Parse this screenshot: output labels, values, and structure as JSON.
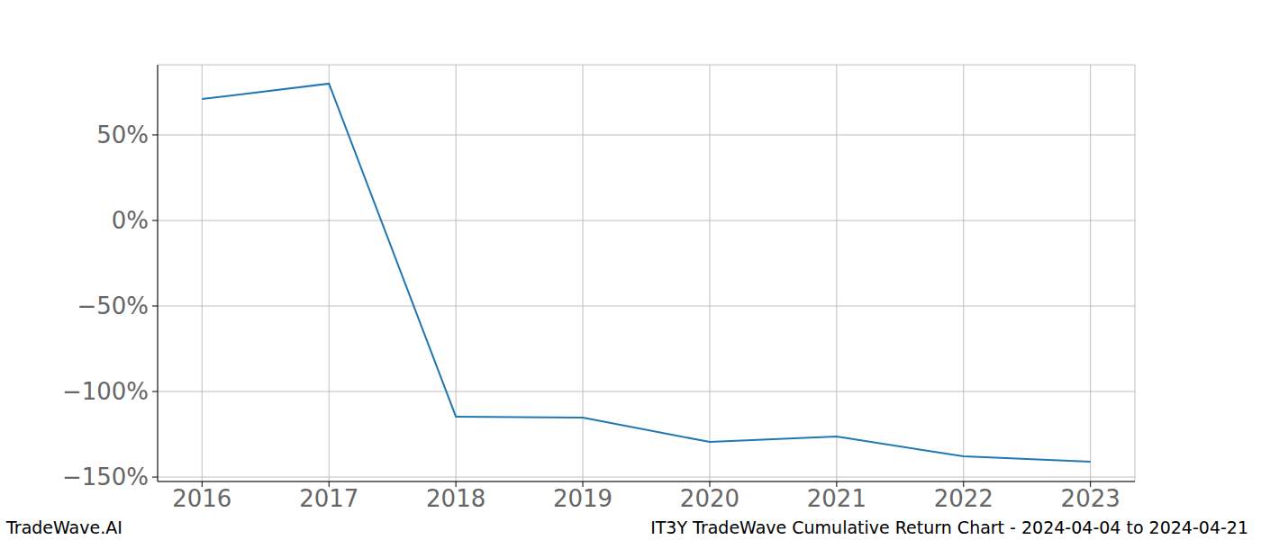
{
  "chart_data": {
    "type": "line",
    "annotations": [
      "TradeWave.AI",
      "IT3Y TradeWave Cumulative Return Chart - 2024-04-04 to 2024-04-21"
    ],
    "x": [
      2016,
      2017,
      2018,
      2019,
      2020,
      2021,
      2022,
      2023
    ],
    "values": [
      71,
      80,
      -114.7,
      -115.3,
      -129.5,
      -126.3,
      -137.9,
      -141
    ],
    "color": "#1f77b4",
    "xlim": [
      2015.65,
      2023.35
    ],
    "ylim": [
      -152.6,
      91
    ],
    "xticks": [
      2016,
      2017,
      2018,
      2019,
      2020,
      2021,
      2022,
      2023
    ],
    "yticks": [
      {
        "value": -150,
        "label": "−150%"
      },
      {
        "value": -100,
        "label": "−100%"
      },
      {
        "value": -50,
        "label": "−50%"
      },
      {
        "value": 0,
        "label": "0%"
      },
      {
        "value": 50,
        "label": "50%"
      }
    ],
    "grid": true
  }
}
